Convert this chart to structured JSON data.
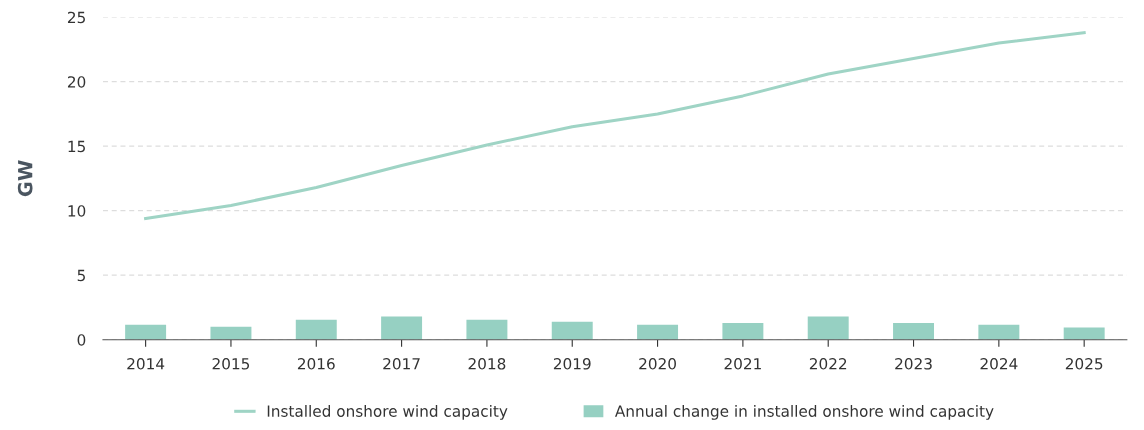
{
  "chart_data": {
    "type": "bar",
    "ylabel": "GW",
    "categories": [
      "2014",
      "2015",
      "2016",
      "2017",
      "2018",
      "2019",
      "2020",
      "2021",
      "2022",
      "2023",
      "2024",
      "2025"
    ],
    "series": [
      {
        "name": "Installed onshore wind capacity",
        "type": "line",
        "color": "#9fd4c5",
        "values": [
          9.4,
          10.4,
          11.8,
          13.5,
          15.1,
          16.5,
          17.5,
          18.9,
          20.6,
          21.8,
          23.0,
          23.8
        ]
      },
      {
        "name": "Annual change in installed onshore wind capacity",
        "color": "#96d0c2",
        "values": [
          1.15,
          1.0,
          1.55,
          1.8,
          1.55,
          1.4,
          1.15,
          1.3,
          1.8,
          1.3,
          1.15,
          0.95
        ]
      }
    ],
    "ylim": [
      0,
      25
    ],
    "yticks": [
      0,
      5,
      10,
      15,
      20,
      25
    ],
    "grid": "y",
    "legend": "bottom",
    "marker": "none",
    "line_style": "solid"
  }
}
